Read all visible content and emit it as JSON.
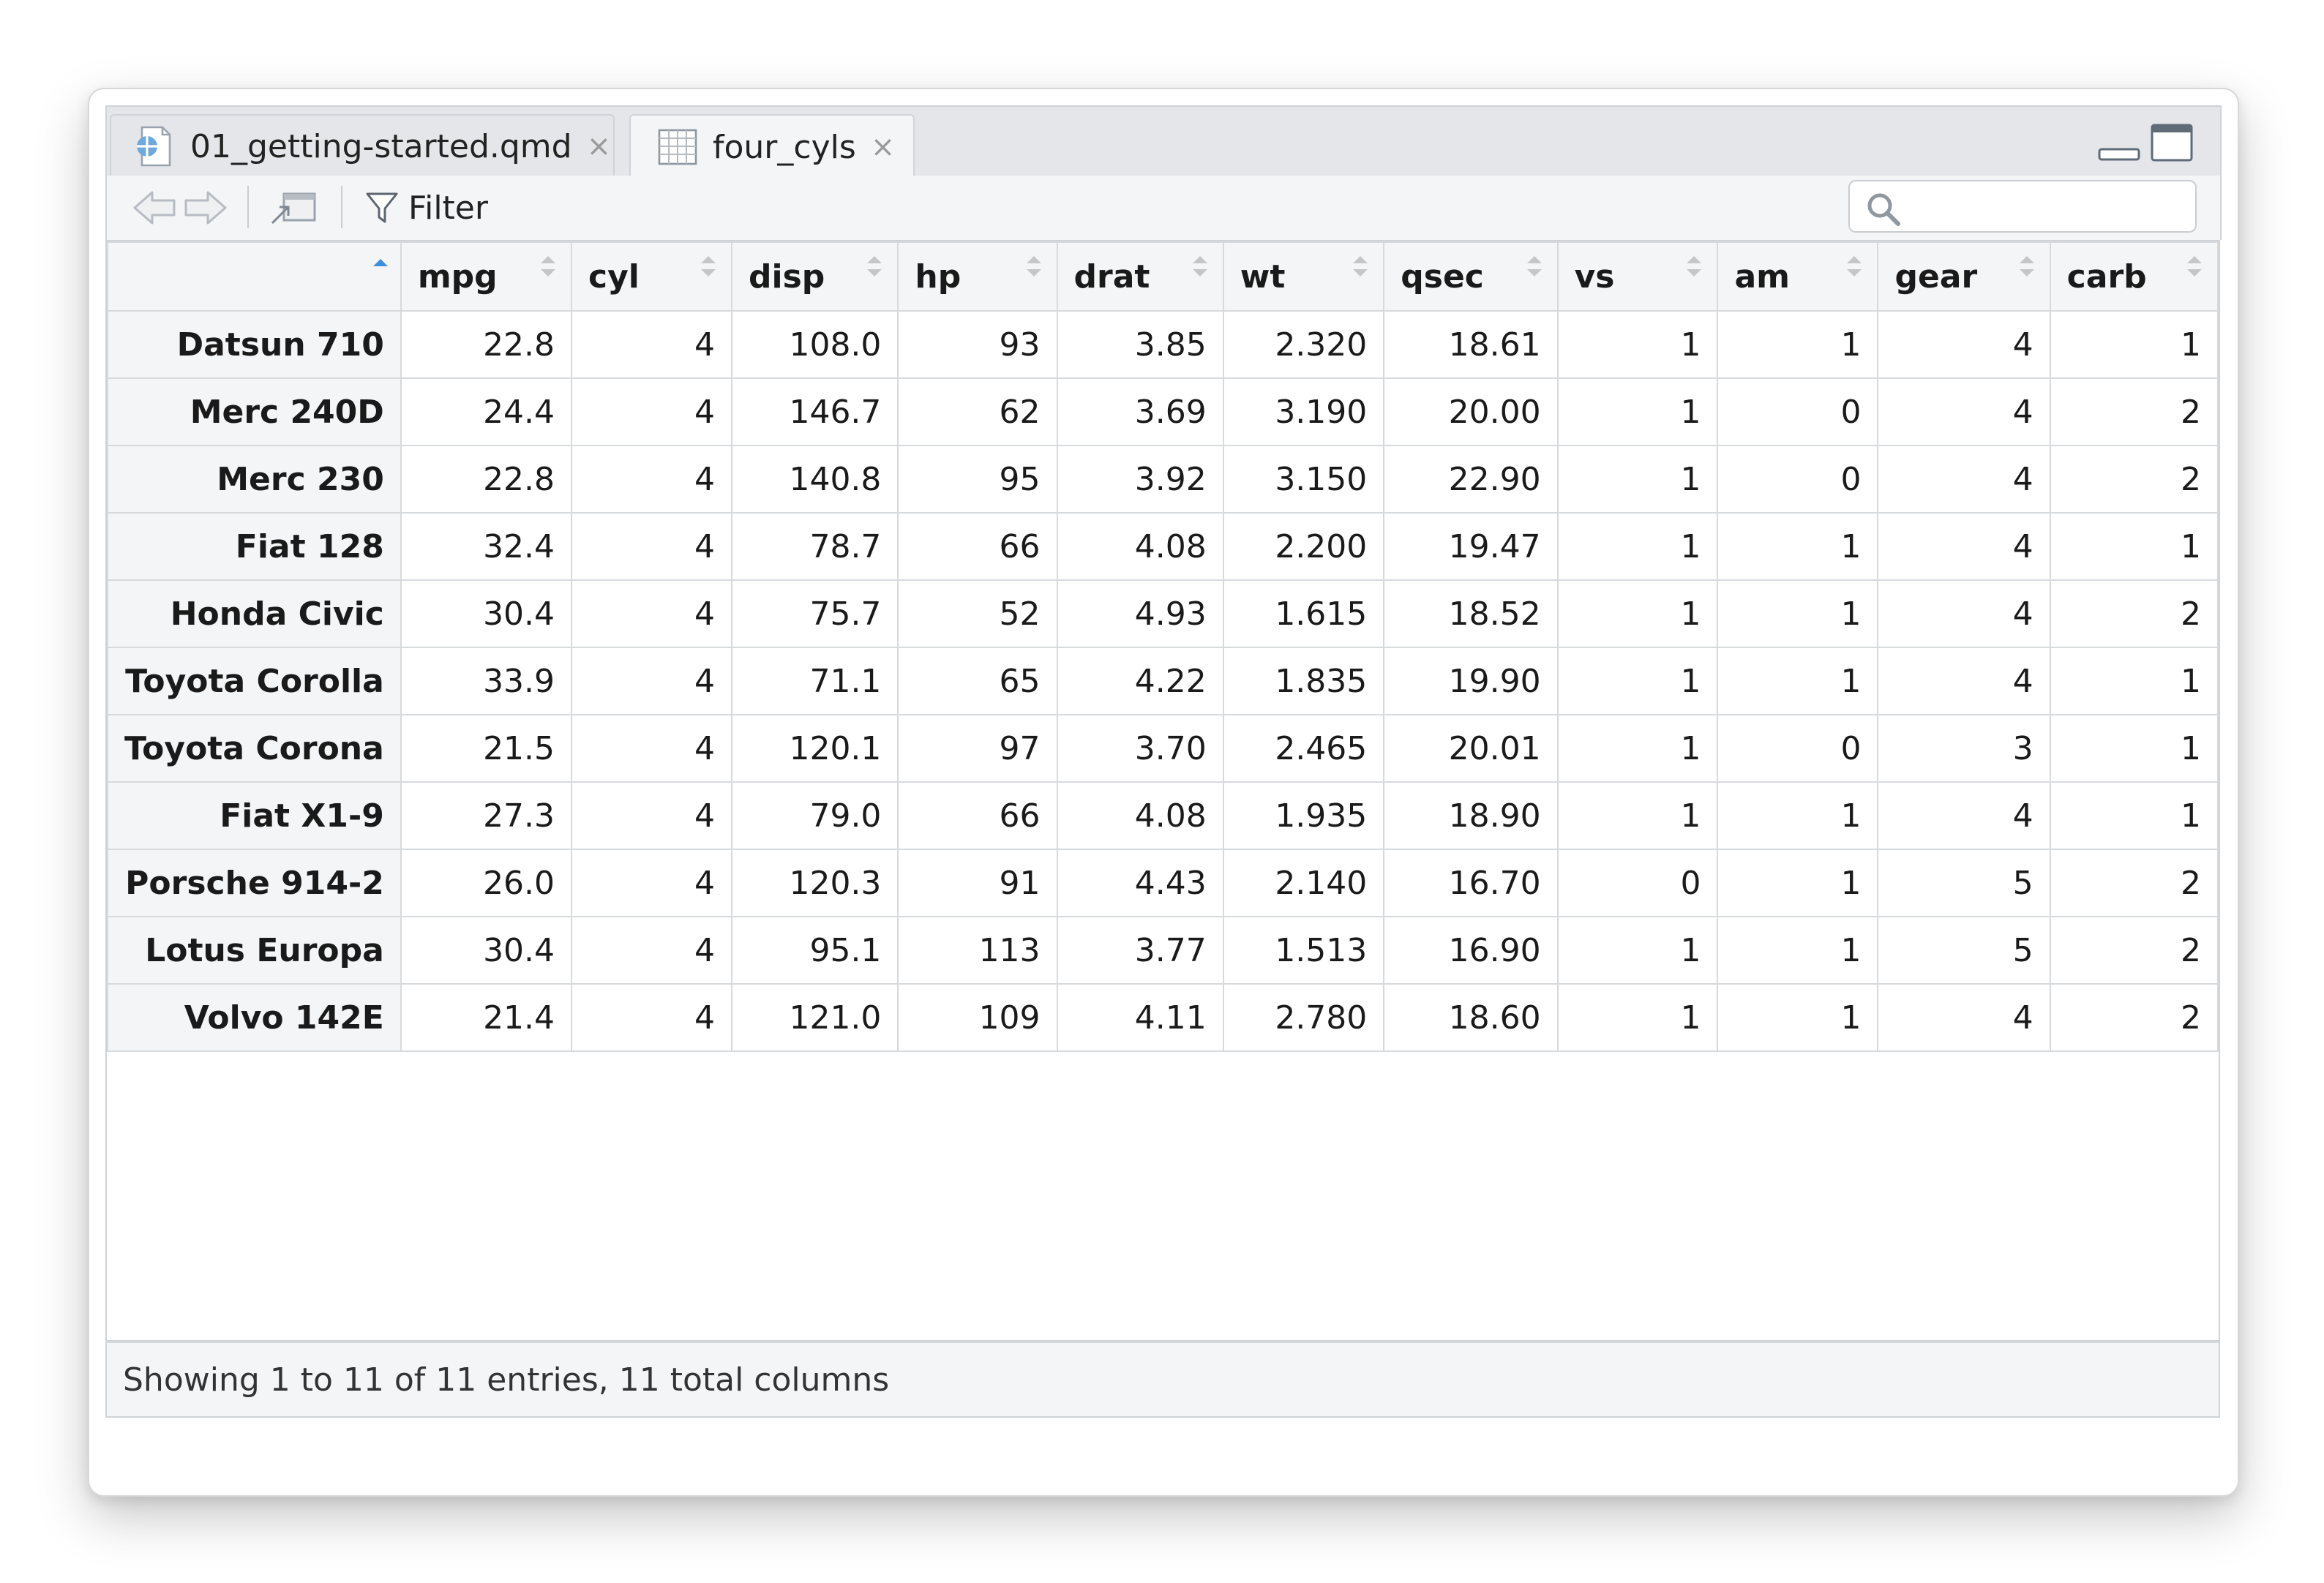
{
  "tabs": [
    {
      "label": "01_getting-started.qmd",
      "icon": "quarto-doc-icon",
      "active": false
    },
    {
      "label": "four_cyls",
      "icon": "data-grid-icon",
      "active": true
    }
  ],
  "toolbar": {
    "filter_label": "Filter",
    "search_placeholder": ""
  },
  "table": {
    "sorted_column": "rownames",
    "sort_direction": "ascending",
    "columns": [
      "mpg",
      "cyl",
      "disp",
      "hp",
      "drat",
      "wt",
      "qsec",
      "vs",
      "am",
      "gear",
      "carb"
    ],
    "rows": [
      {
        "name": "Datsun 710",
        "values": [
          "22.8",
          "4",
          "108.0",
          "93",
          "3.85",
          "2.320",
          "18.61",
          "1",
          "1",
          "4",
          "1"
        ]
      },
      {
        "name": "Merc 240D",
        "values": [
          "24.4",
          "4",
          "146.7",
          "62",
          "3.69",
          "3.190",
          "20.00",
          "1",
          "0",
          "4",
          "2"
        ]
      },
      {
        "name": "Merc 230",
        "values": [
          "22.8",
          "4",
          "140.8",
          "95",
          "3.92",
          "3.150",
          "22.90",
          "1",
          "0",
          "4",
          "2"
        ]
      },
      {
        "name": "Fiat 128",
        "values": [
          "32.4",
          "4",
          "78.7",
          "66",
          "4.08",
          "2.200",
          "19.47",
          "1",
          "1",
          "4",
          "1"
        ]
      },
      {
        "name": "Honda Civic",
        "values": [
          "30.4",
          "4",
          "75.7",
          "52",
          "4.93",
          "1.615",
          "18.52",
          "1",
          "1",
          "4",
          "2"
        ]
      },
      {
        "name": "Toyota Corolla",
        "values": [
          "33.9",
          "4",
          "71.1",
          "65",
          "4.22",
          "1.835",
          "19.90",
          "1",
          "1",
          "4",
          "1"
        ]
      },
      {
        "name": "Toyota Corona",
        "values": [
          "21.5",
          "4",
          "120.1",
          "97",
          "3.70",
          "2.465",
          "20.01",
          "1",
          "0",
          "3",
          "1"
        ]
      },
      {
        "name": "Fiat X1-9",
        "values": [
          "27.3",
          "4",
          "79.0",
          "66",
          "4.08",
          "1.935",
          "18.90",
          "1",
          "1",
          "4",
          "1"
        ]
      },
      {
        "name": "Porsche 914-2",
        "values": [
          "26.0",
          "4",
          "120.3",
          "91",
          "4.43",
          "2.140",
          "16.70",
          "0",
          "1",
          "5",
          "2"
        ]
      },
      {
        "name": "Lotus Europa",
        "values": [
          "30.4",
          "4",
          "95.1",
          "113",
          "3.77",
          "1.513",
          "16.90",
          "1",
          "1",
          "5",
          "2"
        ]
      },
      {
        "name": "Volvo 142E",
        "values": [
          "21.4",
          "4",
          "121.0",
          "109",
          "4.11",
          "2.780",
          "18.60",
          "1",
          "1",
          "4",
          "2"
        ]
      }
    ]
  },
  "footer": {
    "status": "Showing 1 to 11 of 11 entries, 11 total columns"
  },
  "colors": {
    "sort_active": "#3d8fe0",
    "sort_inactive": "#c4c7ca"
  }
}
